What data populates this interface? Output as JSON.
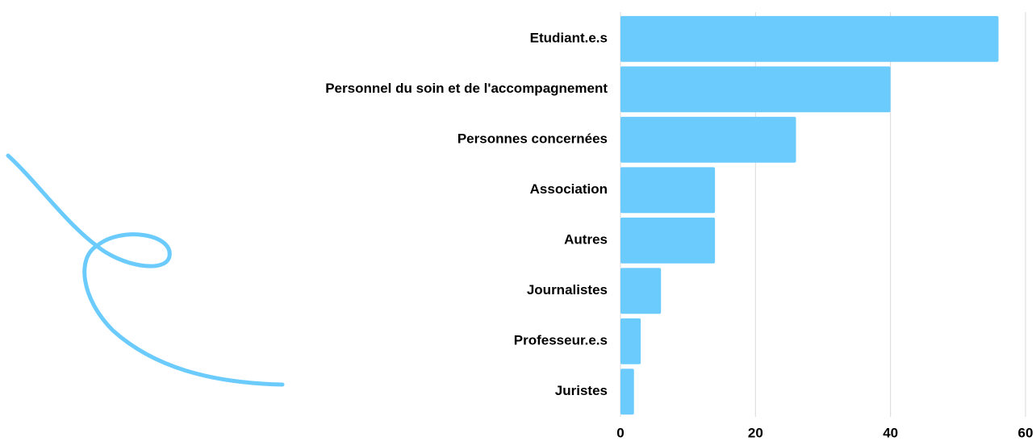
{
  "chart_data": {
    "type": "bar",
    "orientation": "horizontal",
    "categories": [
      "Etudiant.e.s",
      "Personnel du soin et de l'accompagnement",
      "Personnes concernées",
      "Association",
      "Autres",
      "Journalistes",
      "Professeur.e.s",
      "Juristes"
    ],
    "values": [
      56,
      40,
      26,
      14,
      14,
      6,
      3,
      2
    ],
    "color": "#6ccbfd",
    "xlim": [
      0,
      60
    ],
    "xticks": [
      0,
      20,
      40,
      60
    ],
    "grid": true
  }
}
